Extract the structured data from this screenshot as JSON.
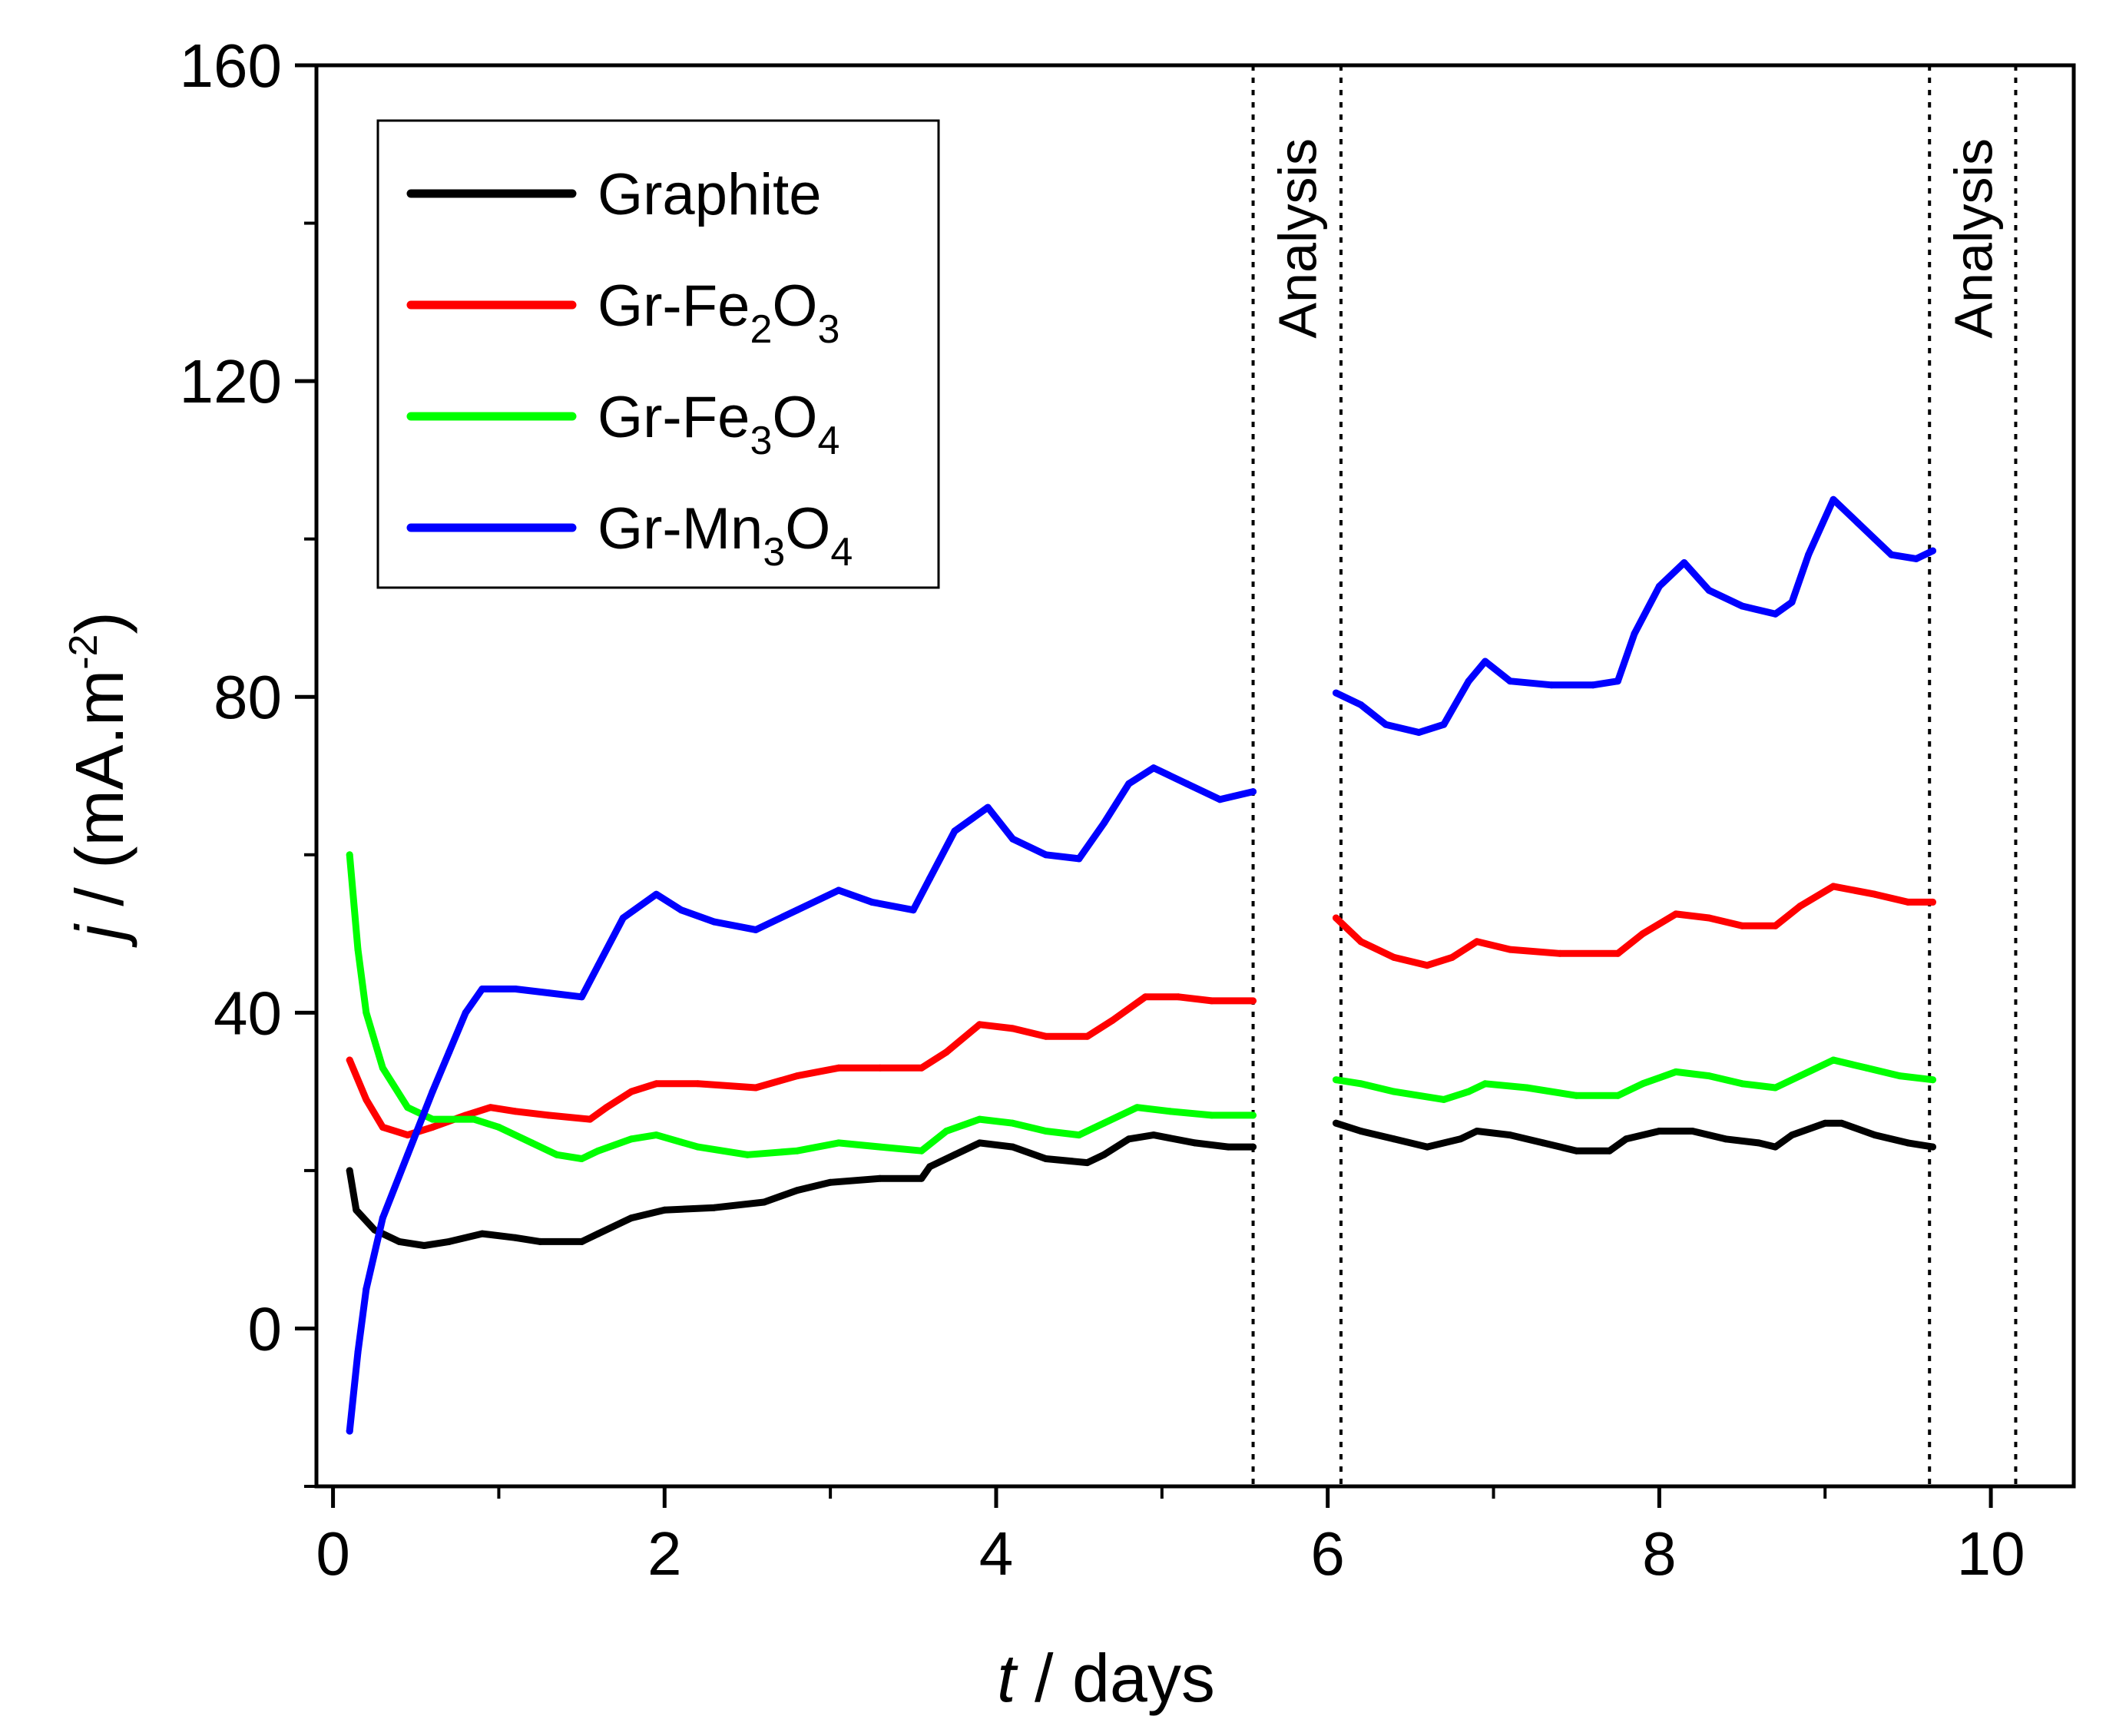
{
  "chart_data": {
    "type": "line",
    "title": "",
    "xlabel_var": "t",
    "xlabel_unit": " / days",
    "ylabel_var": "j",
    "ylabel_unit": " / (mA.m",
    "ylabel_sup": "-2",
    "ylabel_close": ")",
    "xlim": [
      -0.1,
      10.5
    ],
    "ylim": [
      -20,
      160
    ],
    "xticks": [
      0,
      2,
      4,
      6,
      8,
      10
    ],
    "xtick_labels": [
      "0",
      "2",
      "4",
      "6",
      "8",
      "10"
    ],
    "yticks": [
      0,
      40,
      80,
      120,
      160
    ],
    "ytick_labels": [
      "0",
      "40",
      "80",
      "120",
      "160"
    ],
    "legend_position": "top-left",
    "analysis_regions": [
      {
        "label": "Analysis",
        "x_start": 5.55,
        "x_end": 6.08
      },
      {
        "label": "Analysis",
        "x_start": 9.63,
        "x_end": 10.15
      }
    ],
    "series": [
      {
        "name": "Graphite",
        "legend_parts": [
          "Graphite"
        ],
        "color": "#000000",
        "segments": [
          [
            [
              0.1,
              20
            ],
            [
              0.14,
              15
            ],
            [
              0.25,
              12.5
            ],
            [
              0.4,
              11
            ],
            [
              0.55,
              10.5
            ],
            [
              0.7,
              11
            ],
            [
              0.9,
              12
            ],
            [
              1.1,
              11.5
            ],
            [
              1.25,
              11
            ],
            [
              1.5,
              11
            ],
            [
              1.6,
              12
            ],
            [
              1.8,
              14
            ],
            [
              2.0,
              15
            ],
            [
              2.3,
              15.3
            ],
            [
              2.6,
              16
            ],
            [
              2.8,
              17.5
            ],
            [
              3.0,
              18.5
            ],
            [
              3.3,
              19
            ],
            [
              3.55,
              19
            ],
            [
              3.6,
              20.5
            ],
            [
              3.75,
              22
            ],
            [
              3.9,
              23.5
            ],
            [
              4.1,
              23
            ],
            [
              4.3,
              21.5
            ],
            [
              4.55,
              21
            ],
            [
              4.65,
              22
            ],
            [
              4.8,
              24
            ],
            [
              4.95,
              24.5
            ],
            [
              5.2,
              23.5
            ],
            [
              5.4,
              23
            ],
            [
              5.55,
              23
            ]
          ],
          [
            [
              6.05,
              26
            ],
            [
              6.2,
              25
            ],
            [
              6.4,
              24
            ],
            [
              6.6,
              23
            ],
            [
              6.8,
              24
            ],
            [
              6.9,
              25
            ],
            [
              7.1,
              24.5
            ],
            [
              7.3,
              23.5
            ],
            [
              7.5,
              22.5
            ],
            [
              7.7,
              22.5
            ],
            [
              7.8,
              24
            ],
            [
              8.0,
              25
            ],
            [
              8.2,
              25
            ],
            [
              8.4,
              24
            ],
            [
              8.6,
              23.5
            ],
            [
              8.7,
              23
            ],
            [
              8.8,
              24.5
            ],
            [
              9.0,
              26
            ],
            [
              9.1,
              26
            ],
            [
              9.3,
              24.5
            ],
            [
              9.5,
              23.5
            ],
            [
              9.65,
              23
            ]
          ]
        ]
      },
      {
        "name": "Gr-Fe2O3",
        "legend_parts": [
          "Gr-Fe",
          "2",
          "O",
          "3"
        ],
        "color": "#ff0000",
        "segments": [
          [
            [
              0.1,
              34
            ],
            [
              0.2,
              29
            ],
            [
              0.3,
              25.5
            ],
            [
              0.45,
              24.5
            ],
            [
              0.6,
              25.5
            ],
            [
              0.8,
              27
            ],
            [
              0.95,
              28
            ],
            [
              1.1,
              27.5
            ],
            [
              1.3,
              27
            ],
            [
              1.55,
              26.5
            ],
            [
              1.65,
              28
            ],
            [
              1.8,
              30
            ],
            [
              1.95,
              31
            ],
            [
              2.2,
              31
            ],
            [
              2.55,
              30.5
            ],
            [
              2.8,
              32
            ],
            [
              3.05,
              33
            ],
            [
              3.3,
              33
            ],
            [
              3.55,
              33
            ],
            [
              3.7,
              35
            ],
            [
              3.9,
              38.5
            ],
            [
              4.1,
              38
            ],
            [
              4.3,
              37
            ],
            [
              4.55,
              37
            ],
            [
              4.7,
              39
            ],
            [
              4.9,
              42
            ],
            [
              5.1,
              42
            ],
            [
              5.3,
              41.5
            ],
            [
              5.55,
              41.5
            ]
          ],
          [
            [
              6.05,
              52
            ],
            [
              6.2,
              49
            ],
            [
              6.4,
              47
            ],
            [
              6.6,
              46
            ],
            [
              6.75,
              47
            ],
            [
              6.9,
              49
            ],
            [
              7.1,
              48
            ],
            [
              7.4,
              47.5
            ],
            [
              7.75,
              47.5
            ],
            [
              7.9,
              50
            ],
            [
              8.1,
              52.5
            ],
            [
              8.3,
              52
            ],
            [
              8.5,
              51
            ],
            [
              8.7,
              51
            ],
            [
              8.85,
              53.5
            ],
            [
              9.05,
              56
            ],
            [
              9.3,
              55
            ],
            [
              9.5,
              54
            ],
            [
              9.65,
              54
            ]
          ]
        ]
      },
      {
        "name": "Gr-Fe3O4",
        "legend_parts": [
          "Gr-Fe",
          "3",
          "O",
          "4"
        ],
        "color": "#00ff00",
        "segments": [
          [
            [
              0.1,
              60
            ],
            [
              0.15,
              48
            ],
            [
              0.2,
              40
            ],
            [
              0.3,
              33
            ],
            [
              0.45,
              28
            ],
            [
              0.6,
              26.5
            ],
            [
              0.85,
              26.5
            ],
            [
              1.0,
              25.5
            ],
            [
              1.2,
              23.5
            ],
            [
              1.35,
              22
            ],
            [
              1.5,
              21.5
            ],
            [
              1.6,
              22.5
            ],
            [
              1.8,
              24
            ],
            [
              1.95,
              24.5
            ],
            [
              2.2,
              23
            ],
            [
              2.5,
              22
            ],
            [
              2.8,
              22.5
            ],
            [
              3.05,
              23.5
            ],
            [
              3.3,
              23
            ],
            [
              3.55,
              22.5
            ],
            [
              3.7,
              25
            ],
            [
              3.9,
              26.5
            ],
            [
              4.1,
              26
            ],
            [
              4.3,
              25
            ],
            [
              4.5,
              24.5
            ],
            [
              4.65,
              26
            ],
            [
              4.85,
              28
            ],
            [
              5.05,
              27.5
            ],
            [
              5.3,
              27
            ],
            [
              5.55,
              27
            ]
          ],
          [
            [
              6.05,
              31.5
            ],
            [
              6.2,
              31
            ],
            [
              6.4,
              30
            ],
            [
              6.7,
              29
            ],
            [
              6.85,
              30
            ],
            [
              6.95,
              31
            ],
            [
              7.2,
              30.5
            ],
            [
              7.5,
              29.5
            ],
            [
              7.75,
              29.5
            ],
            [
              7.9,
              31
            ],
            [
              8.1,
              32.5
            ],
            [
              8.3,
              32
            ],
            [
              8.5,
              31
            ],
            [
              8.7,
              30.5
            ],
            [
              8.85,
              32
            ],
            [
              9.05,
              34
            ],
            [
              9.25,
              33
            ],
            [
              9.45,
              32
            ],
            [
              9.65,
              31.5
            ]
          ]
        ]
      },
      {
        "name": "Gr-Mn3O4",
        "legend_parts": [
          "Gr-Mn",
          "3",
          "O",
          "4"
        ],
        "color": "#0000ff",
        "segments": [
          [
            [
              0.1,
              -13
            ],
            [
              0.15,
              -3
            ],
            [
              0.2,
              5
            ],
            [
              0.3,
              14
            ],
            [
              0.45,
              22
            ],
            [
              0.6,
              30
            ],
            [
              0.7,
              35
            ],
            [
              0.8,
              40
            ],
            [
              0.9,
              43
            ],
            [
              1.1,
              43
            ],
            [
              1.3,
              42.5
            ],
            [
              1.5,
              42
            ],
            [
              1.6,
              46
            ],
            [
              1.75,
              52
            ],
            [
              1.95,
              55
            ],
            [
              2.1,
              53
            ],
            [
              2.3,
              51.5
            ],
            [
              2.55,
              50.5
            ],
            [
              2.8,
              53
            ],
            [
              3.05,
              55.5
            ],
            [
              3.25,
              54
            ],
            [
              3.5,
              53
            ],
            [
              3.6,
              57
            ],
            [
              3.75,
              63
            ],
            [
              3.95,
              66
            ],
            [
              4.1,
              62
            ],
            [
              4.3,
              60
            ],
            [
              4.5,
              59.5
            ],
            [
              4.65,
              64
            ],
            [
              4.8,
              69
            ],
            [
              4.95,
              71
            ],
            [
              5.15,
              69
            ],
            [
              5.35,
              67
            ],
            [
              5.55,
              68
            ]
          ],
          [
            [
              6.05,
              80.5
            ],
            [
              6.2,
              79
            ],
            [
              6.35,
              76.5
            ],
            [
              6.55,
              75.5
            ],
            [
              6.7,
              76.5
            ],
            [
              6.85,
              82
            ],
            [
              6.95,
              84.5
            ],
            [
              7.1,
              82
            ],
            [
              7.35,
              81.5
            ],
            [
              7.6,
              81.5
            ],
            [
              7.75,
              82
            ],
            [
              7.85,
              88
            ],
            [
              8.0,
              94
            ],
            [
              8.15,
              97
            ],
            [
              8.3,
              93.5
            ],
            [
              8.5,
              91.5
            ],
            [
              8.7,
              90.5
            ],
            [
              8.8,
              92
            ],
            [
              8.9,
              98
            ],
            [
              9.05,
              105
            ],
            [
              9.2,
              102
            ],
            [
              9.4,
              98
            ],
            [
              9.55,
              97.5
            ],
            [
              9.65,
              98.5
            ]
          ]
        ]
      }
    ]
  }
}
